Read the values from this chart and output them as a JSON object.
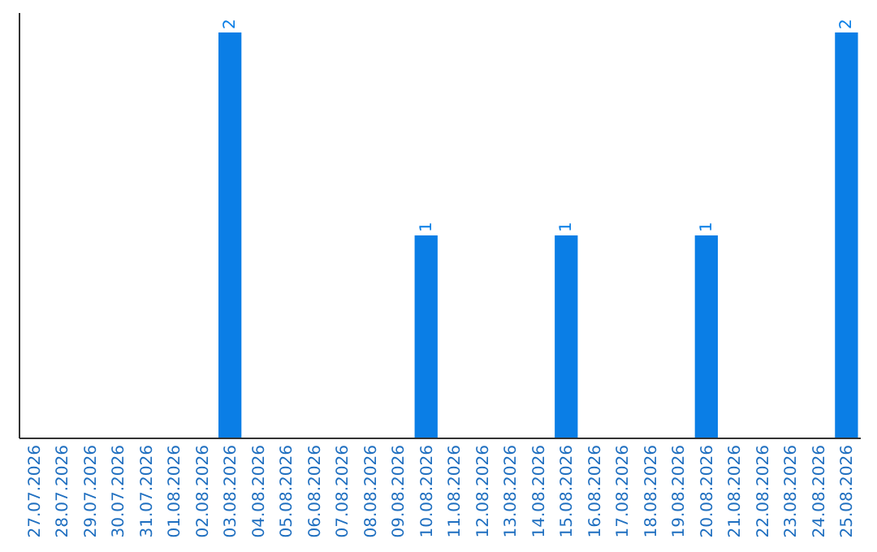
{
  "chart_data": {
    "type": "bar",
    "categories": [
      "27.07.2026",
      "28.07.2026",
      "29.07.2026",
      "30.07.2026",
      "31.07.2026",
      "01.08.2026",
      "02.08.2026",
      "03.08.2026",
      "04.08.2026",
      "05.08.2026",
      "06.08.2026",
      "07.08.2026",
      "08.08.2026",
      "09.08.2026",
      "10.08.2026",
      "11.08.2026",
      "12.08.2026",
      "13.08.2026",
      "14.08.2026",
      "15.08.2026",
      "16.08.2026",
      "17.08.2026",
      "18.08.2026",
      "19.08.2026",
      "20.08.2026",
      "21.08.2026",
      "22.08.2026",
      "23.08.2026",
      "24.08.2026",
      "25.08.2026"
    ],
    "values": [
      0,
      0,
      0,
      0,
      0,
      0,
      0,
      2,
      0,
      0,
      0,
      0,
      0,
      0,
      1,
      0,
      0,
      0,
      0,
      1,
      0,
      0,
      0,
      0,
      1,
      0,
      0,
      0,
      0,
      2
    ],
    "value_labels": [
      null,
      null,
      null,
      null,
      null,
      null,
      null,
      "2",
      null,
      null,
      null,
      null,
      null,
      null,
      "1",
      null,
      null,
      null,
      null,
      "1",
      null,
      null,
      null,
      null,
      "1",
      null,
      null,
      null,
      null,
      "2"
    ],
    "color": "#0a7ee6"
  }
}
